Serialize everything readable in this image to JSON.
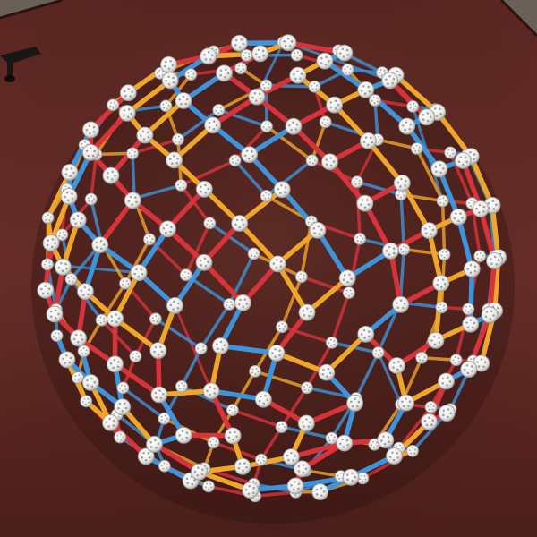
{
  "scene": {
    "subject": "zometool-polyhedron-model",
    "colors": {
      "floor_top": "#6b6058",
      "table": "#5e2a24",
      "table_dark": "#3e1a16",
      "strut_red": "#d8333b",
      "strut_yellow": "#f0a628",
      "strut_blue": "#3d94db",
      "node": "#f2f2f0",
      "node_shadow": "#9a9a98",
      "node_hole": "#7a7a78"
    }
  }
}
